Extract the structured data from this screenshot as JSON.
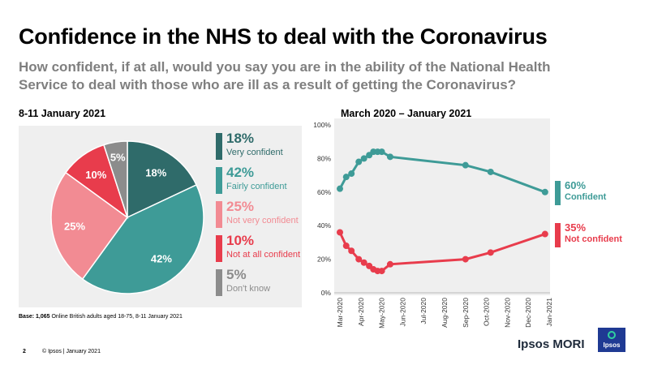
{
  "header": {
    "title": "Confidence in the NHS to deal with the Coronavirus",
    "subtitle": "How confident, if at all, would you say you are in the ability of the National Health Service to deal with those who are ill as a result of getting the Coronavirus?"
  },
  "pie_panel": {
    "title": "8-11 January 2021"
  },
  "line_panel": {
    "title": "March 2020 – January 2021"
  },
  "base_note": {
    "bold": "Base: 1,065",
    "rest": " Online British adults aged 18-75,  8-11 January 2021"
  },
  "footer": {
    "page": "2",
    "copyright": "© Ipsos | January  2021"
  },
  "logo": {
    "name": "Ipsos MORI",
    "badge": "Ipsos"
  },
  "colors": {
    "dark_teal": "#2f6b6a",
    "teal": "#3e9b97",
    "pink": "#f28b93",
    "red": "#e83c4c",
    "grey": "#8c8c8c",
    "green_accent": "#2fd1a0"
  },
  "chart_data": [
    {
      "type": "pie",
      "title": "8-11 January 2021",
      "slices": [
        {
          "label": "Very confident",
          "value": 18,
          "pct_label": "18%",
          "color": "#2f6b6a"
        },
        {
          "label": "Fairly confident",
          "value": 42,
          "pct_label": "42%",
          "color": "#3e9b97"
        },
        {
          "label": "Not very confident",
          "value": 25,
          "pct_label": "25%",
          "color": "#f28b93"
        },
        {
          "label": "Not at all confident",
          "value": 10,
          "pct_label": "10%",
          "color": "#e83c4c"
        },
        {
          "label": "Don't know",
          "value": 5,
          "pct_label": "5%",
          "color": "#8c8c8c"
        }
      ]
    },
    {
      "type": "line",
      "title": "March 2020 – January 2021",
      "x_ticks": [
        "Mar-2020",
        "Apr-2020",
        "May-2020",
        "Jun-2020",
        "Jul-2020",
        "Aug-2020",
        "Sep-2020",
        "Oct-2020",
        "Nov-2020",
        "Dec-2020",
        "Jan-2021"
      ],
      "y_ticks": [
        "0%",
        "20%",
        "40%",
        "60%",
        "80%",
        "100%"
      ],
      "ylim": [
        0,
        100
      ],
      "series": [
        {
          "name": "Confident",
          "end_label": "60%",
          "color": "#3e9b97",
          "points": [
            {
              "x": 0.0,
              "y": 62
            },
            {
              "x": 0.3,
              "y": 69
            },
            {
              "x": 0.55,
              "y": 71
            },
            {
              "x": 0.9,
              "y": 78
            },
            {
              "x": 1.15,
              "y": 80
            },
            {
              "x": 1.4,
              "y": 82
            },
            {
              "x": 1.6,
              "y": 84
            },
            {
              "x": 1.8,
              "y": 84
            },
            {
              "x": 2.0,
              "y": 84
            },
            {
              "x": 2.4,
              "y": 81
            },
            {
              "x": 6.0,
              "y": 76
            },
            {
              "x": 7.2,
              "y": 72
            },
            {
              "x": 9.8,
              "y": 60
            }
          ]
        },
        {
          "name": "Not confident",
          "end_label": "35%",
          "color": "#e83c4c",
          "points": [
            {
              "x": 0.0,
              "y": 36
            },
            {
              "x": 0.3,
              "y": 28
            },
            {
              "x": 0.55,
              "y": 25
            },
            {
              "x": 0.9,
              "y": 20
            },
            {
              "x": 1.15,
              "y": 18
            },
            {
              "x": 1.4,
              "y": 16
            },
            {
              "x": 1.6,
              "y": 14
            },
            {
              "x": 1.8,
              "y": 13
            },
            {
              "x": 2.0,
              "y": 13
            },
            {
              "x": 2.4,
              "y": 17
            },
            {
              "x": 6.0,
              "y": 20
            },
            {
              "x": 7.2,
              "y": 24
            },
            {
              "x": 9.8,
              "y": 35
            }
          ]
        }
      ]
    }
  ]
}
